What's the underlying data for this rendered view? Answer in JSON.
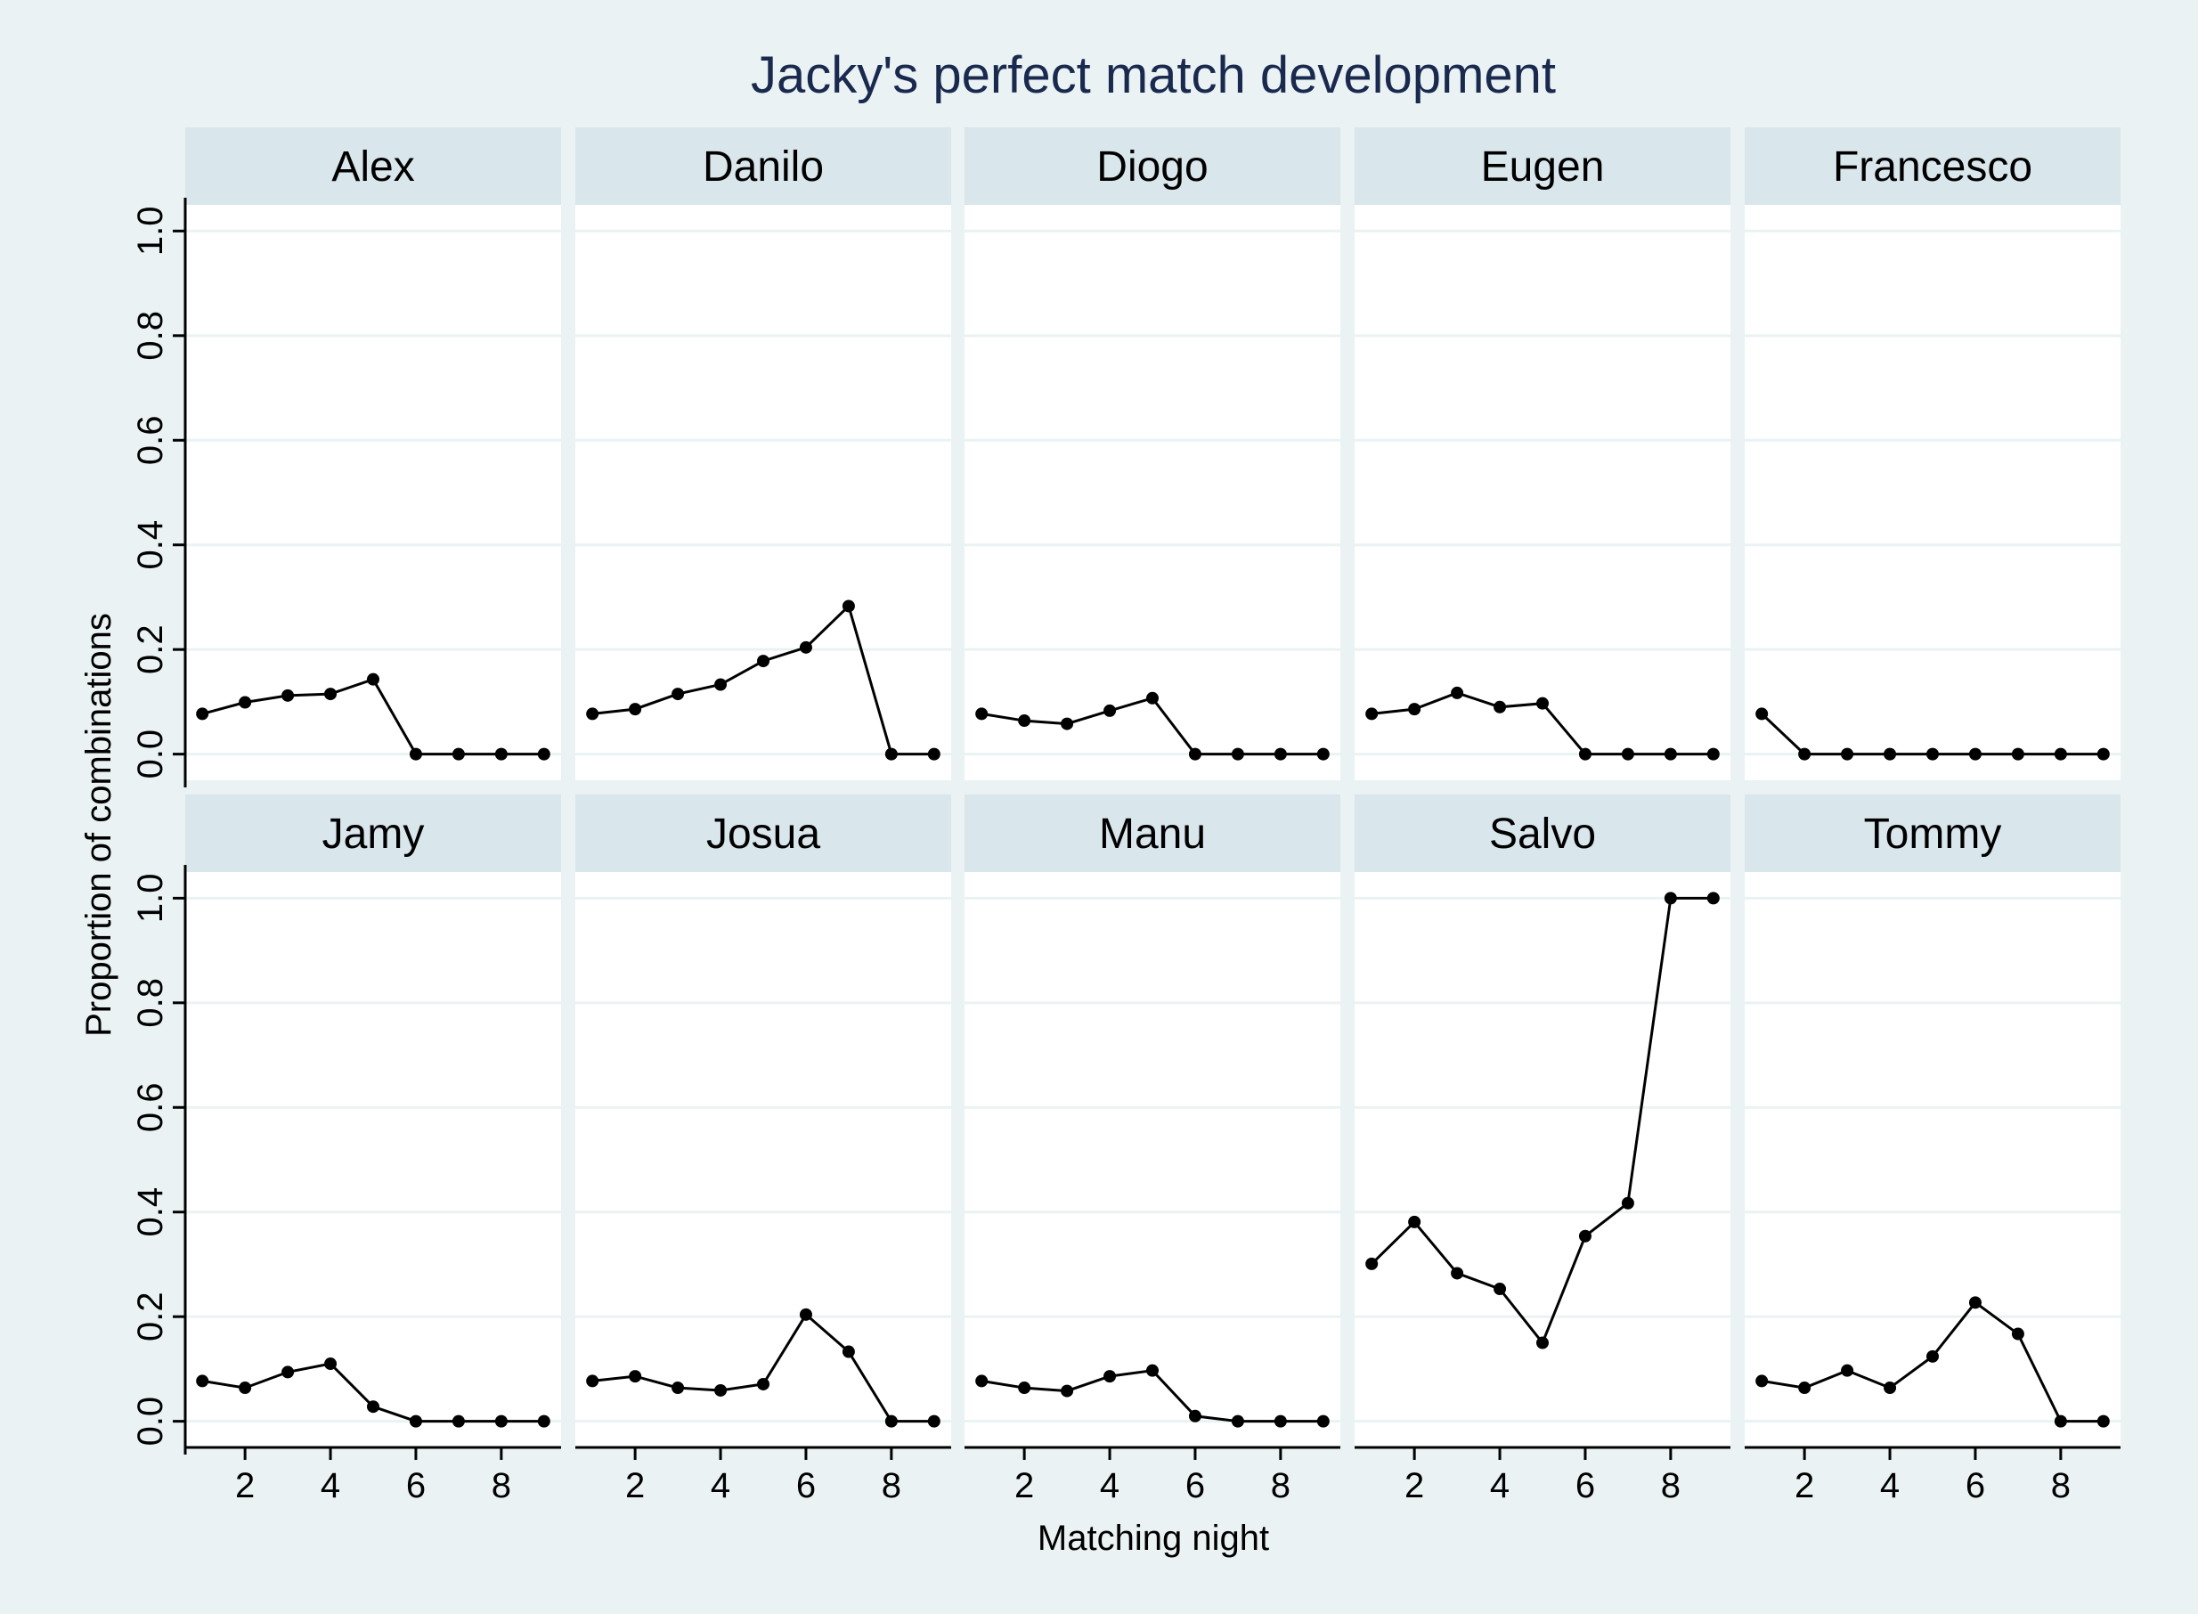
{
  "chart_data": {
    "type": "line",
    "title": "Jacky's perfect match development",
    "xlabel": "Matching night",
    "ylabel": "Proportion of combinations",
    "x": [
      1,
      2,
      3,
      4,
      5,
      6,
      7,
      8,
      9
    ],
    "xticks": [
      2,
      4,
      6,
      8
    ],
    "xtick_labels": [
      "2",
      "4",
      "6",
      "8"
    ],
    "xlim": [
      0.6,
      9.4
    ],
    "ylim": [
      -0.05,
      1.05
    ],
    "yticks": [
      0.0,
      0.2,
      0.4,
      0.6,
      0.8,
      1.0
    ],
    "ytick_labels": [
      "0.0",
      "0.2",
      "0.4",
      "0.6",
      "0.8",
      "1.0"
    ],
    "grid": true,
    "layout": "2 rows x 5 panels",
    "colors": {
      "background": "#eaf2f3",
      "strip": "#d9e6ec",
      "plot": "#ffffff",
      "line": "#000000",
      "gridline": "#eaf2f3",
      "title": "#1a2a4f"
    },
    "series": [
      {
        "name": "Alex",
        "values": [
          0.077,
          0.099,
          0.112,
          0.115,
          0.143,
          0.0,
          0.0,
          0.0,
          0.0
        ]
      },
      {
        "name": "Danilo",
        "values": [
          0.077,
          0.086,
          0.115,
          0.133,
          0.178,
          0.204,
          0.283,
          0.0,
          0.0
        ]
      },
      {
        "name": "Diogo",
        "values": [
          0.077,
          0.064,
          0.058,
          0.083,
          0.107,
          0.0,
          0.0,
          0.0,
          0.0
        ]
      },
      {
        "name": "Eugen",
        "values": [
          0.077,
          0.086,
          0.117,
          0.09,
          0.097,
          0.0,
          0.0,
          0.0,
          0.0
        ]
      },
      {
        "name": "Francesco",
        "values": [
          0.077,
          0.0,
          0.0,
          0.0,
          0.0,
          0.0,
          0.0,
          0.0,
          0.0
        ]
      },
      {
        "name": "Jamy",
        "values": [
          0.077,
          0.064,
          0.094,
          0.11,
          0.028,
          0.0,
          0.0,
          0.0,
          0.0
        ]
      },
      {
        "name": "Josua",
        "values": [
          0.077,
          0.086,
          0.064,
          0.059,
          0.071,
          0.204,
          0.133,
          0.0,
          0.0
        ]
      },
      {
        "name": "Manu",
        "values": [
          0.077,
          0.064,
          0.058,
          0.086,
          0.097,
          0.01,
          0.0,
          0.0,
          0.0
        ]
      },
      {
        "name": "Salvo",
        "values": [
          0.301,
          0.381,
          0.283,
          0.253,
          0.15,
          0.354,
          0.417,
          1.0,
          1.0
        ]
      },
      {
        "name": "Tommy",
        "values": [
          0.077,
          0.064,
          0.097,
          0.064,
          0.124,
          0.227,
          0.167,
          0.0,
          0.0
        ]
      }
    ]
  }
}
